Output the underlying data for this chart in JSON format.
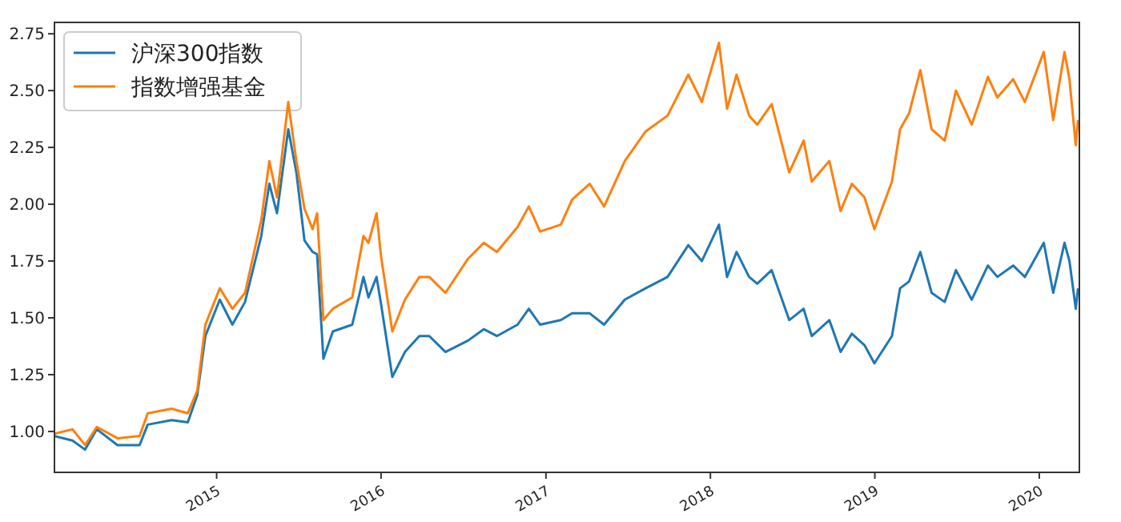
{
  "chart_data": {
    "type": "line",
    "legend": "top left",
    "grid": false,
    "x": [
      "2014-01-06",
      "2014-02-15",
      "2014-03-15",
      "2014-04-10",
      "2014-05-26",
      "2014-07-14",
      "2014-08-01",
      "2014-09-23",
      "2014-10-29",
      "2014-11-19",
      "2014-12-07",
      "2015-01-08",
      "2015-02-05",
      "2015-03-05",
      "2015-04-10",
      "2015-04-28",
      "2015-05-15",
      "2015-06-09",
      "2015-06-27",
      "2015-07-15",
      "2015-08-02",
      "2015-08-12",
      "2015-08-26",
      "2015-09-16",
      "2015-10-29",
      "2015-11-23",
      "2015-12-04",
      "2015-12-22",
      "2016-01-01",
      "2016-01-26",
      "2016-02-23",
      "2016-03-26",
      "2016-04-17",
      "2016-05-23",
      "2016-07-12",
      "2016-08-16",
      "2016-09-14",
      "2016-10-30",
      "2016-11-24",
      "2016-12-19",
      "2017-02-03",
      "2017-02-28",
      "2017-04-08",
      "2017-05-10",
      "2017-06-25",
      "2017-08-10",
      "2017-09-28",
      "2017-11-13",
      "2017-12-13",
      "2018-01-20",
      "2018-02-07",
      "2018-02-28",
      "2018-03-28",
      "2018-04-15",
      "2018-05-17",
      "2018-06-25",
      "2018-07-27",
      "2018-08-14",
      "2018-09-22",
      "2018-10-17",
      "2018-11-11",
      "2018-12-09",
      "2018-12-31",
      "2019-02-08",
      "2019-02-26",
      "2019-03-18",
      "2019-04-12",
      "2019-05-07",
      "2019-06-05",
      "2019-06-30",
      "2019-08-04",
      "2019-09-09",
      "2019-09-30",
      "2019-11-04",
      "2019-11-30",
      "2020-01-11",
      "2020-02-01",
      "2020-02-26",
      "2020-03-08",
      "2020-03-22",
      "2020-03-27"
    ],
    "series": [
      {
        "name": "沪深300指数",
        "color": "#1f77b4",
        "values": [
          0.98,
          0.96,
          0.92,
          1.01,
          0.94,
          0.94,
          1.03,
          1.05,
          1.04,
          1.16,
          1.42,
          1.58,
          1.47,
          1.57,
          1.86,
          2.09,
          1.96,
          2.33,
          2.14,
          1.84,
          1.79,
          1.78,
          1.32,
          1.44,
          1.47,
          1.68,
          1.59,
          1.68,
          1.56,
          1.24,
          1.35,
          1.42,
          1.42,
          1.35,
          1.4,
          1.45,
          1.42,
          1.47,
          1.54,
          1.47,
          1.49,
          1.52,
          1.52,
          1.47,
          1.58,
          1.63,
          1.68,
          1.82,
          1.75,
          1.91,
          1.68,
          1.79,
          1.68,
          1.65,
          1.71,
          1.49,
          1.54,
          1.42,
          1.49,
          1.35,
          1.43,
          1.38,
          1.3,
          1.42,
          1.63,
          1.66,
          1.79,
          1.61,
          1.57,
          1.71,
          1.58,
          1.73,
          1.68,
          1.73,
          1.68,
          1.83,
          1.61,
          1.83,
          1.75,
          1.54,
          1.63
        ]
      },
      {
        "name": "指数增强基金",
        "color": "#ff7f0e",
        "values": [
          0.99,
          1.01,
          0.94,
          1.02,
          0.97,
          0.98,
          1.08,
          1.1,
          1.08,
          1.18,
          1.47,
          1.63,
          1.54,
          1.61,
          1.93,
          2.19,
          2.03,
          2.45,
          2.19,
          1.98,
          1.89,
          1.96,
          1.49,
          1.54,
          1.59,
          1.86,
          1.83,
          1.96,
          1.77,
          1.44,
          1.58,
          1.68,
          1.68,
          1.61,
          1.76,
          1.83,
          1.79,
          1.9,
          1.99,
          1.88,
          1.91,
          2.02,
          2.09,
          1.99,
          2.19,
          2.32,
          2.39,
          2.57,
          2.45,
          2.71,
          2.42,
          2.57,
          2.39,
          2.35,
          2.44,
          2.14,
          2.28,
          2.1,
          2.19,
          1.97,
          2.09,
          2.03,
          1.89,
          2.1,
          2.33,
          2.4,
          2.59,
          2.33,
          2.28,
          2.5,
          2.35,
          2.56,
          2.47,
          2.55,
          2.45,
          2.67,
          2.37,
          2.67,
          2.55,
          2.26,
          2.37
        ]
      }
    ],
    "xlim": [
      "2014-01-06",
      "2020-03-30"
    ],
    "xticks": [
      {
        "value": "2015-01-01",
        "label": "2015"
      },
      {
        "value": "2016-01-01",
        "label": "2016"
      },
      {
        "value": "2017-01-01",
        "label": "2017"
      },
      {
        "value": "2018-01-01",
        "label": "2018"
      },
      {
        "value": "2019-01-01",
        "label": "2019"
      },
      {
        "value": "2020-01-01",
        "label": "2020"
      }
    ],
    "ylim": [
      0.82,
      2.8
    ],
    "yticks": [
      {
        "value": 1,
        "label": "1.00"
      },
      {
        "value": 1.25,
        "label": "1.25"
      },
      {
        "value": 1.5,
        "label": "1.50"
      },
      {
        "value": 1.75,
        "label": "1.75"
      },
      {
        "value": 2,
        "label": "2.00"
      },
      {
        "value": 2.25,
        "label": "2.25"
      },
      {
        "value": 2.5,
        "label": "2.50"
      },
      {
        "value": 2.75,
        "label": "2.75"
      }
    ]
  }
}
